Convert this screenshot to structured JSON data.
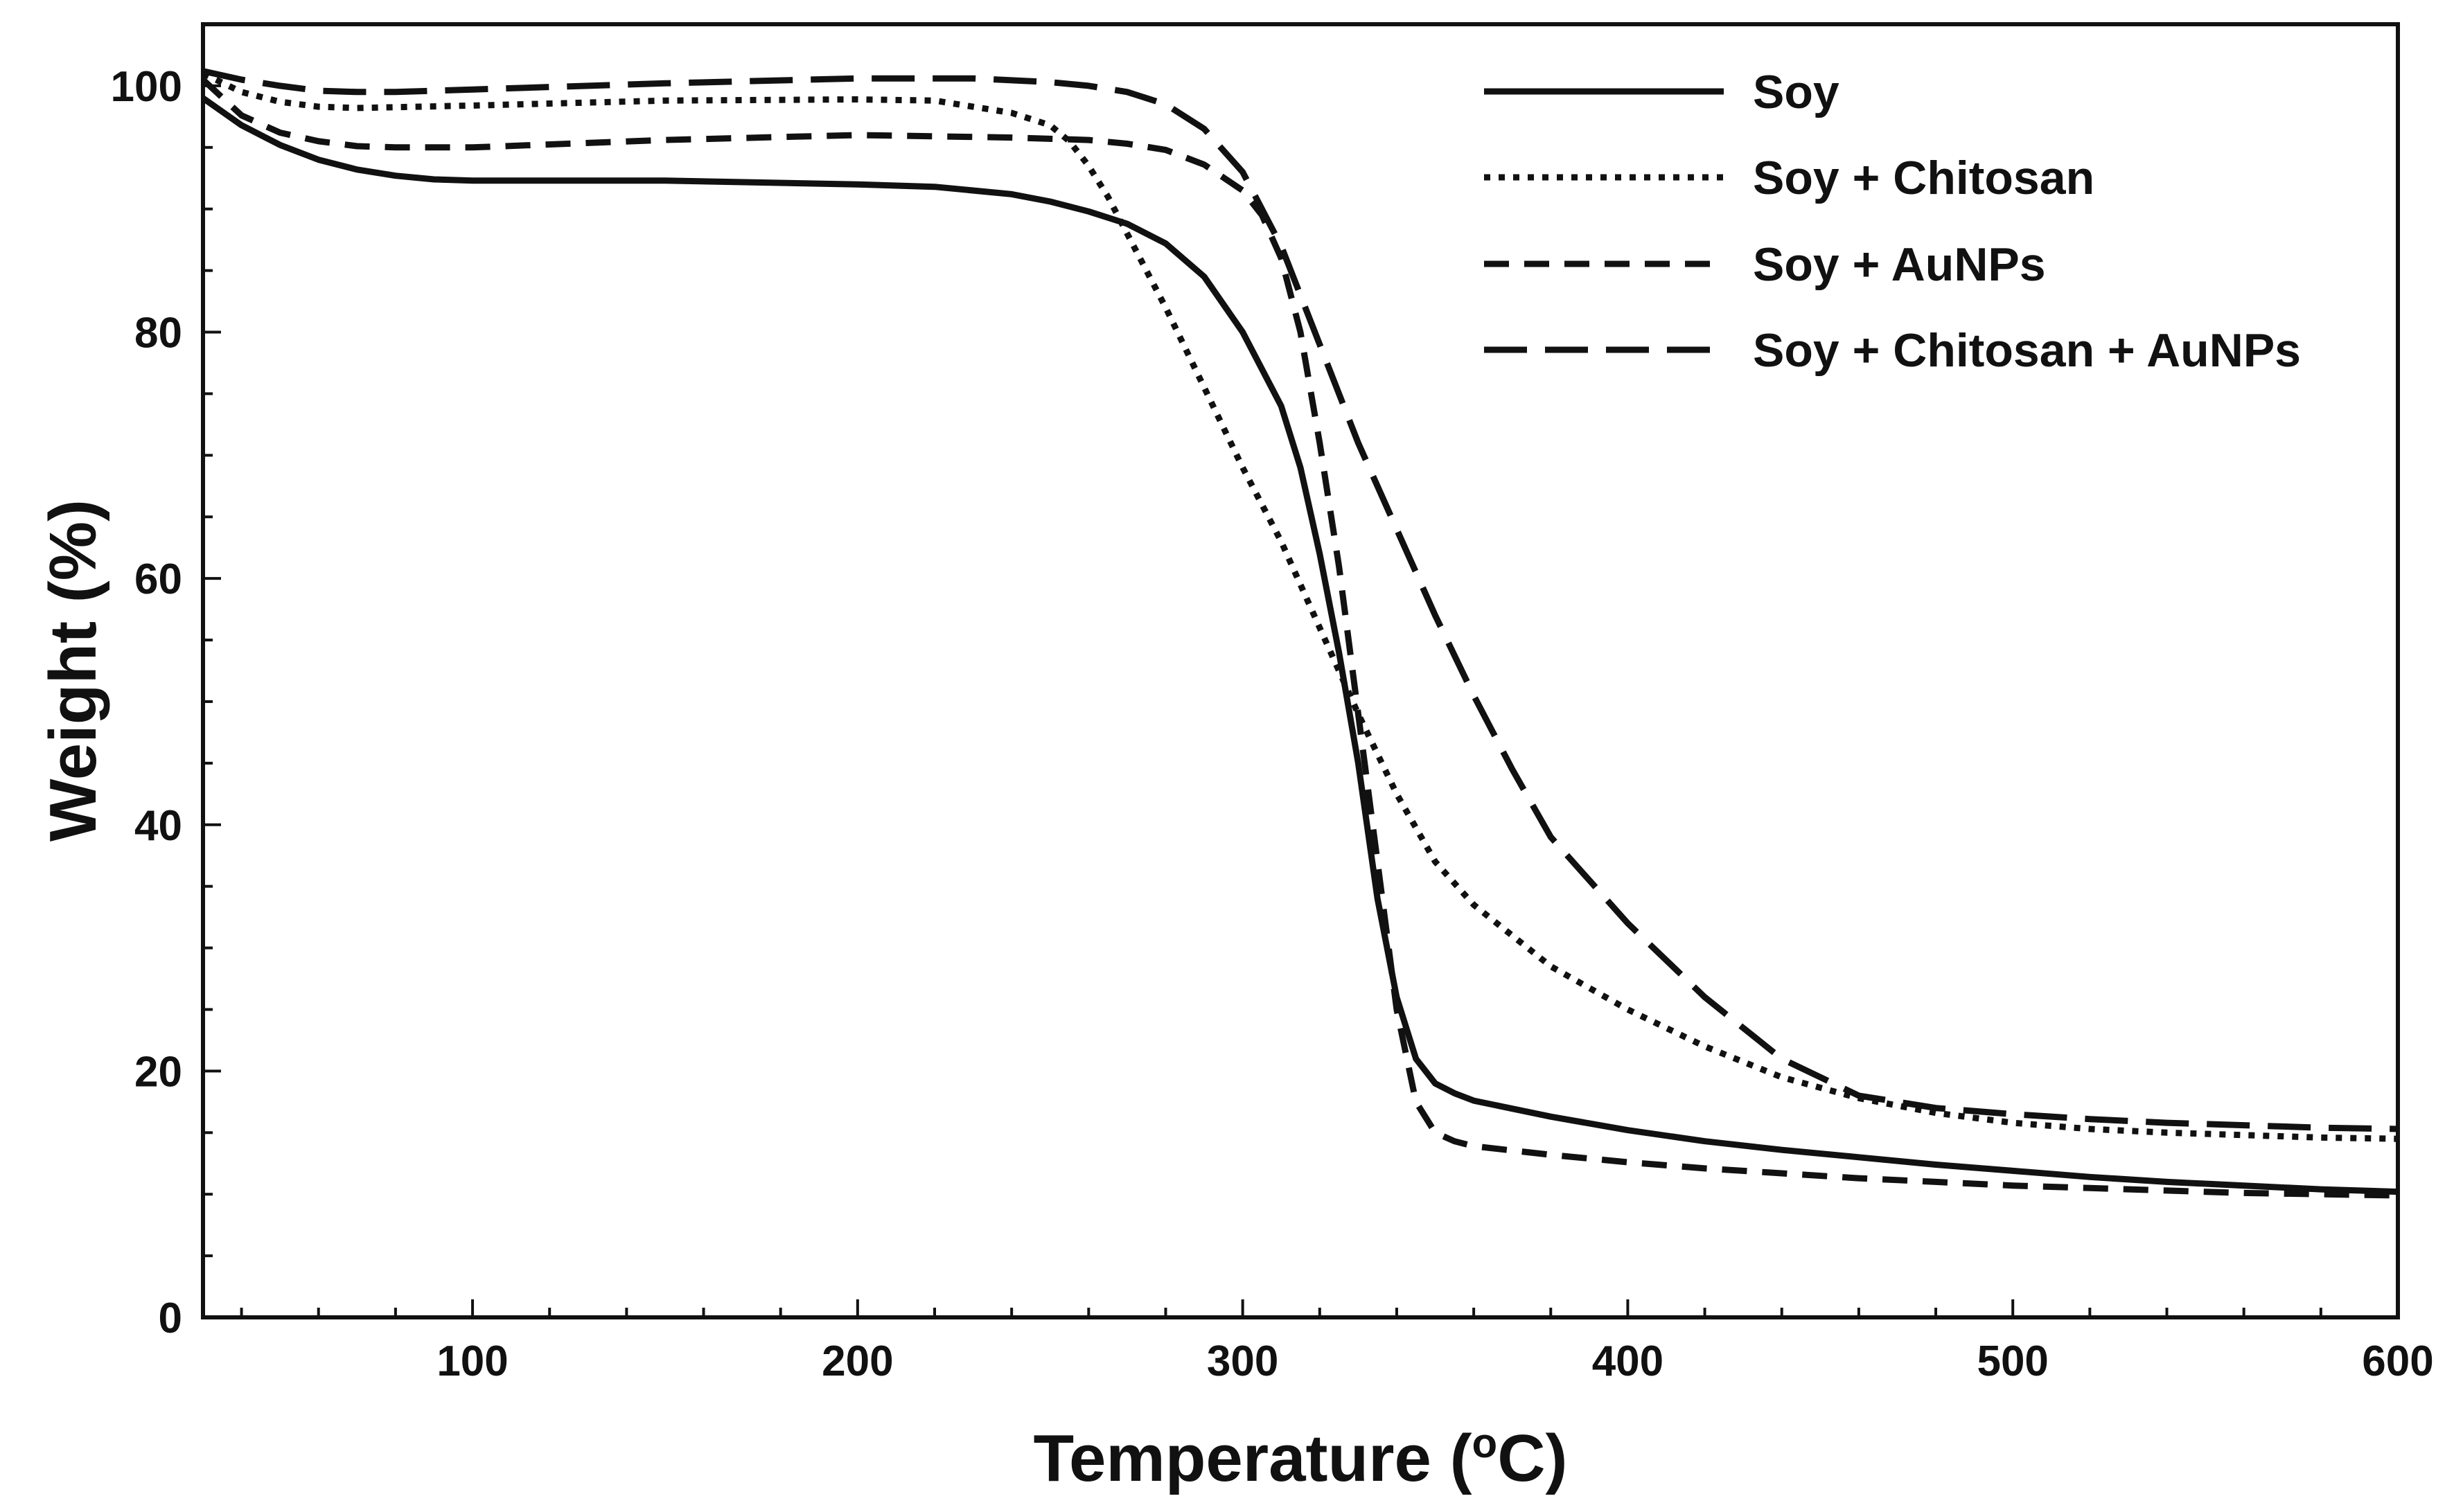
{
  "chart_data": {
    "type": "line",
    "title": "",
    "xlabel": "Temperature (°C)",
    "xlabel_base": "Temperature (",
    "xlabel_sup": "o",
    "xlabel_tail": "C)",
    "ylabel": "Weight (%)",
    "xlim": [
      30,
      600
    ],
    "ylim": [
      0,
      105
    ],
    "x_ticks": [
      100,
      200,
      300,
      400,
      500,
      600
    ],
    "y_ticks": [
      0,
      20,
      40,
      60,
      80,
      100
    ],
    "x_minor_step": 20,
    "y_minor_step": 5,
    "grid": false,
    "legend_position": "top-right",
    "series": [
      {
        "name": "Soy",
        "style": "solid",
        "points": [
          [
            30,
            99
          ],
          [
            40,
            96.8
          ],
          [
            50,
            95.2
          ],
          [
            60,
            94
          ],
          [
            70,
            93.2
          ],
          [
            80,
            92.7
          ],
          [
            90,
            92.4
          ],
          [
            100,
            92.3
          ],
          [
            150,
            92.3
          ],
          [
            200,
            92
          ],
          [
            220,
            91.8
          ],
          [
            240,
            91.2
          ],
          [
            250,
            90.6
          ],
          [
            260,
            89.8
          ],
          [
            270,
            88.8
          ],
          [
            280,
            87.2
          ],
          [
            290,
            84.5
          ],
          [
            300,
            80
          ],
          [
            310,
            74
          ],
          [
            315,
            69
          ],
          [
            320,
            62
          ],
          [
            325,
            54
          ],
          [
            330,
            45
          ],
          [
            335,
            34
          ],
          [
            340,
            26
          ],
          [
            345,
            21
          ],
          [
            350,
            19
          ],
          [
            355,
            18.2
          ],
          [
            360,
            17.6
          ],
          [
            380,
            16.3
          ],
          [
            400,
            15.2
          ],
          [
            420,
            14.3
          ],
          [
            440,
            13.6
          ],
          [
            460,
            13
          ],
          [
            480,
            12.4
          ],
          [
            500,
            11.9
          ],
          [
            520,
            11.4
          ],
          [
            540,
            11
          ],
          [
            560,
            10.7
          ],
          [
            580,
            10.4
          ],
          [
            600,
            10.2
          ]
        ]
      },
      {
        "name": "Soy + Chitosan",
        "style": "dotted",
        "points": [
          [
            30,
            101
          ],
          [
            40,
            99.5
          ],
          [
            50,
            98.7
          ],
          [
            60,
            98.3
          ],
          [
            70,
            98.2
          ],
          [
            100,
            98.4
          ],
          [
            150,
            98.8
          ],
          [
            200,
            98.9
          ],
          [
            220,
            98.8
          ],
          [
            240,
            97.8
          ],
          [
            250,
            96.8
          ],
          [
            255,
            95.5
          ],
          [
            260,
            93.5
          ],
          [
            265,
            91
          ],
          [
            270,
            88
          ],
          [
            280,
            82
          ],
          [
            290,
            75.5
          ],
          [
            300,
            69
          ],
          [
            310,
            63
          ],
          [
            320,
            56
          ],
          [
            330,
            49
          ],
          [
            340,
            42.5
          ],
          [
            350,
            37
          ],
          [
            360,
            33.5
          ],
          [
            380,
            28.5
          ],
          [
            400,
            25
          ],
          [
            420,
            22
          ],
          [
            440,
            19.5
          ],
          [
            460,
            17.8
          ],
          [
            480,
            16.6
          ],
          [
            500,
            15.8
          ],
          [
            520,
            15.3
          ],
          [
            540,
            15
          ],
          [
            560,
            14.8
          ],
          [
            580,
            14.6
          ],
          [
            600,
            14.5
          ]
        ]
      },
      {
        "name": "Soy + AuNPs",
        "style": "dashed",
        "points": [
          [
            30,
            100.5
          ],
          [
            40,
            97.6
          ],
          [
            50,
            96.2
          ],
          [
            60,
            95.5
          ],
          [
            70,
            95.1
          ],
          [
            80,
            95
          ],
          [
            100,
            95
          ],
          [
            150,
            95.6
          ],
          [
            200,
            96
          ],
          [
            240,
            95.8
          ],
          [
            260,
            95.6
          ],
          [
            270,
            95.3
          ],
          [
            280,
            94.8
          ],
          [
            290,
            93.6
          ],
          [
            300,
            91.5
          ],
          [
            305,
            89.5
          ],
          [
            310,
            86
          ],
          [
            315,
            80
          ],
          [
            320,
            71
          ],
          [
            325,
            61
          ],
          [
            330,
            49
          ],
          [
            335,
            37
          ],
          [
            340,
            25
          ],
          [
            345,
            17.5
          ],
          [
            350,
            15
          ],
          [
            355,
            14.3
          ],
          [
            360,
            13.9
          ],
          [
            380,
            13.2
          ],
          [
            400,
            12.6
          ],
          [
            420,
            12.1
          ],
          [
            440,
            11.7
          ],
          [
            460,
            11.3
          ],
          [
            480,
            11
          ],
          [
            500,
            10.7
          ],
          [
            520,
            10.5
          ],
          [
            540,
            10.3
          ],
          [
            560,
            10.1
          ],
          [
            580,
            10
          ],
          [
            600,
            9.9
          ]
        ]
      },
      {
        "name": "Soy + Chitosan + AuNPs",
        "style": "long-dash",
        "points": [
          [
            30,
            101.2
          ],
          [
            40,
            100.5
          ],
          [
            50,
            100
          ],
          [
            60,
            99.6
          ],
          [
            70,
            99.5
          ],
          [
            80,
            99.5
          ],
          [
            100,
            99.7
          ],
          [
            150,
            100.2
          ],
          [
            200,
            100.6
          ],
          [
            230,
            100.6
          ],
          [
            250,
            100.3
          ],
          [
            260,
            100
          ],
          [
            270,
            99.5
          ],
          [
            280,
            98.5
          ],
          [
            290,
            96.5
          ],
          [
            300,
            93
          ],
          [
            310,
            87
          ],
          [
            320,
            79
          ],
          [
            330,
            71
          ],
          [
            340,
            64
          ],
          [
            350,
            57
          ],
          [
            360,
            50.5
          ],
          [
            370,
            44.5
          ],
          [
            380,
            39
          ],
          [
            400,
            32
          ],
          [
            420,
            26
          ],
          [
            440,
            21
          ],
          [
            460,
            18
          ],
          [
            480,
            17
          ],
          [
            500,
            16.5
          ],
          [
            520,
            16.1
          ],
          [
            540,
            15.8
          ],
          [
            560,
            15.6
          ],
          [
            580,
            15.4
          ],
          [
            600,
            15.3
          ]
        ]
      }
    ]
  }
}
